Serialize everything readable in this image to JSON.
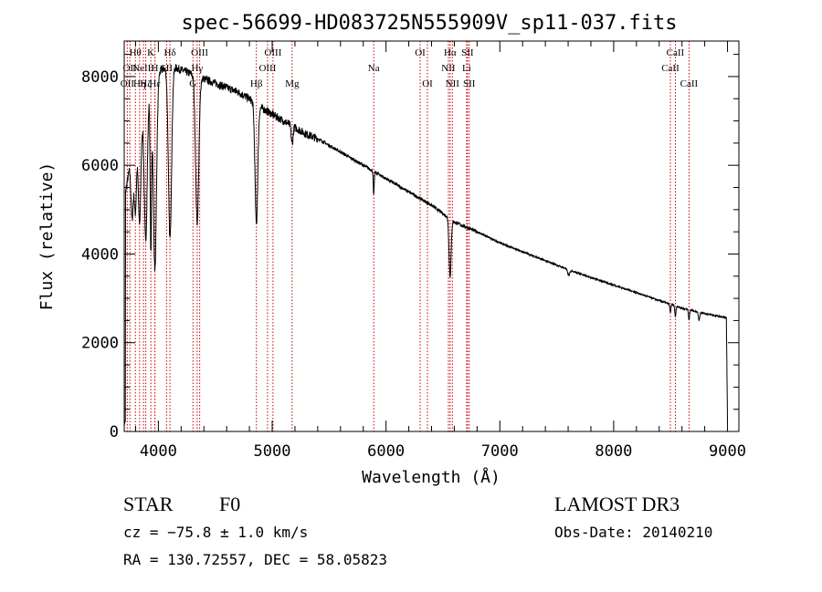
{
  "chart_data": {
    "type": "line",
    "title": "spec-56699-HD083725N555909V_sp11-037.fits",
    "xlabel": "Wavelength (Å)",
    "ylabel": "Flux (relative)",
    "xlim": [
      3700,
      9100
    ],
    "ylim": [
      0,
      8800
    ],
    "xticks": [
      4000,
      5000,
      6000,
      7000,
      8000,
      9000
    ],
    "yticks": [
      0,
      2000,
      4000,
      6000,
      8000
    ],
    "continuum": [
      [
        3700,
        5200
      ],
      [
        3800,
        6800
      ],
      [
        3900,
        7600
      ],
      [
        4000,
        8100
      ],
      [
        4100,
        8250
      ],
      [
        4200,
        8150
      ],
      [
        4300,
        8050
      ],
      [
        4400,
        7950
      ],
      [
        4500,
        7850
      ],
      [
        4600,
        7750
      ],
      [
        4700,
        7650
      ],
      [
        4800,
        7500
      ],
      [
        4900,
        7300
      ],
      [
        5000,
        7150
      ],
      [
        5100,
        7000
      ],
      [
        5200,
        6850
      ],
      [
        5300,
        6700
      ],
      [
        5400,
        6600
      ],
      [
        5500,
        6450
      ],
      [
        5600,
        6300
      ],
      [
        5700,
        6150
      ],
      [
        5800,
        6000
      ],
      [
        5900,
        5850
      ],
      [
        6000,
        5700
      ],
      [
        6200,
        5400
      ],
      [
        6400,
        5100
      ],
      [
        6600,
        4720
      ],
      [
        6800,
        4500
      ],
      [
        7000,
        4250
      ],
      [
        7200,
        4050
      ],
      [
        7400,
        3850
      ],
      [
        7600,
        3650
      ],
      [
        7800,
        3470
      ],
      [
        8000,
        3300
      ],
      [
        8200,
        3130
      ],
      [
        8400,
        2950
      ],
      [
        8600,
        2780
      ],
      [
        8800,
        2660
      ],
      [
        8990,
        2560
      ],
      [
        9000,
        200
      ]
    ],
    "absorption_lines": [
      {
        "center": 3770,
        "depth": 1500,
        "width": 10
      },
      {
        "center": 3798,
        "depth": 1800,
        "width": 10
      },
      {
        "center": 3835,
        "depth": 2400,
        "width": 12
      },
      {
        "center": 3889,
        "depth": 3200,
        "width": 13
      },
      {
        "center": 3934,
        "depth": 3600,
        "width": 6
      },
      {
        "center": 3970,
        "depth": 4300,
        "width": 14
      },
      {
        "center": 4102,
        "depth": 3900,
        "width": 14
      },
      {
        "center": 4341,
        "depth": 3300,
        "width": 14
      },
      {
        "center": 4861,
        "depth": 2700,
        "width": 12
      },
      {
        "center": 5175,
        "depth": 400,
        "width": 8
      },
      {
        "center": 5892,
        "depth": 550,
        "width": 4
      },
      {
        "center": 6563,
        "depth": 1300,
        "width": 9
      },
      {
        "center": 7605,
        "depth": 120,
        "width": 10
      },
      {
        "center": 8498,
        "depth": 180,
        "width": 5
      },
      {
        "center": 8542,
        "depth": 240,
        "width": 5
      },
      {
        "center": 8662,
        "depth": 220,
        "width": 5
      },
      {
        "center": 8750,
        "depth": 180,
        "width": 6
      }
    ],
    "line_markers": [
      {
        "wavelength": 3727,
        "label": "OII",
        "row": 2
      },
      {
        "wavelength": 3750,
        "label": "OII",
        "row": 1
      },
      {
        "wavelength": 3798,
        "label": "Hθ",
        "row": 0
      },
      {
        "wavelength": 3835,
        "label": "Hη",
        "row": 2
      },
      {
        "wavelength": 3869,
        "label": "NeIII",
        "row": 1
      },
      {
        "wavelength": 3889,
        "label": "Hζ",
        "row": 2
      },
      {
        "wavelength": 3934,
        "label": "K",
        "row": 0
      },
      {
        "wavelength": 3969,
        "label": "H",
        "row": 1
      },
      {
        "wavelength": 3970,
        "label": "Hε",
        "row": 2
      },
      {
        "wavelength": 4072,
        "label": "SII",
        "row": 1
      },
      {
        "wavelength": 4102,
        "label": "Hδ",
        "row": 0
      },
      {
        "wavelength": 4304,
        "label": "G",
        "row": 2
      },
      {
        "wavelength": 4341,
        "label": "Hγ",
        "row": 1
      },
      {
        "wavelength": 4363,
        "label": "OIII",
        "row": 0
      },
      {
        "wavelength": 4861,
        "label": "Hβ",
        "row": 2
      },
      {
        "wavelength": 4959,
        "label": "OIII",
        "row": 1
      },
      {
        "wavelength": 5007,
        "label": "OIII",
        "row": 0
      },
      {
        "wavelength": 5175,
        "label": "Mg",
        "row": 2
      },
      {
        "wavelength": 5892,
        "label": "Na",
        "row": 1
      },
      {
        "wavelength": 6300,
        "label": "OI",
        "row": 0
      },
      {
        "wavelength": 6364,
        "label": "OI",
        "row": 2
      },
      {
        "wavelength": 6548,
        "label": "NII",
        "row": 1
      },
      {
        "wavelength": 6563,
        "label": "Hα",
        "row": 0
      },
      {
        "wavelength": 6583,
        "label": "NII",
        "row": 2
      },
      {
        "wavelength": 6708,
        "label": "Li",
        "row": 1
      },
      {
        "wavelength": 6716,
        "label": "SII",
        "row": 0
      },
      {
        "wavelength": 6731,
        "label": "SII",
        "row": 2
      },
      {
        "wavelength": 8498,
        "label": "CaII",
        "row": 1
      },
      {
        "wavelength": 8542,
        "label": "CaII",
        "row": 0
      },
      {
        "wavelength": 8662,
        "label": "CaII",
        "row": 2
      }
    ],
    "line_color": "#000000",
    "marker_color": "#cc0000"
  },
  "info": {
    "object_class": "STAR",
    "subclass": "F0",
    "survey": "LAMOST DR3",
    "cz": "cz = −75.8 ± 1.0 km/s",
    "obs_date": "Obs-Date: 20140210",
    "coords": "RA = 130.72557, DEC =  58.05823"
  }
}
